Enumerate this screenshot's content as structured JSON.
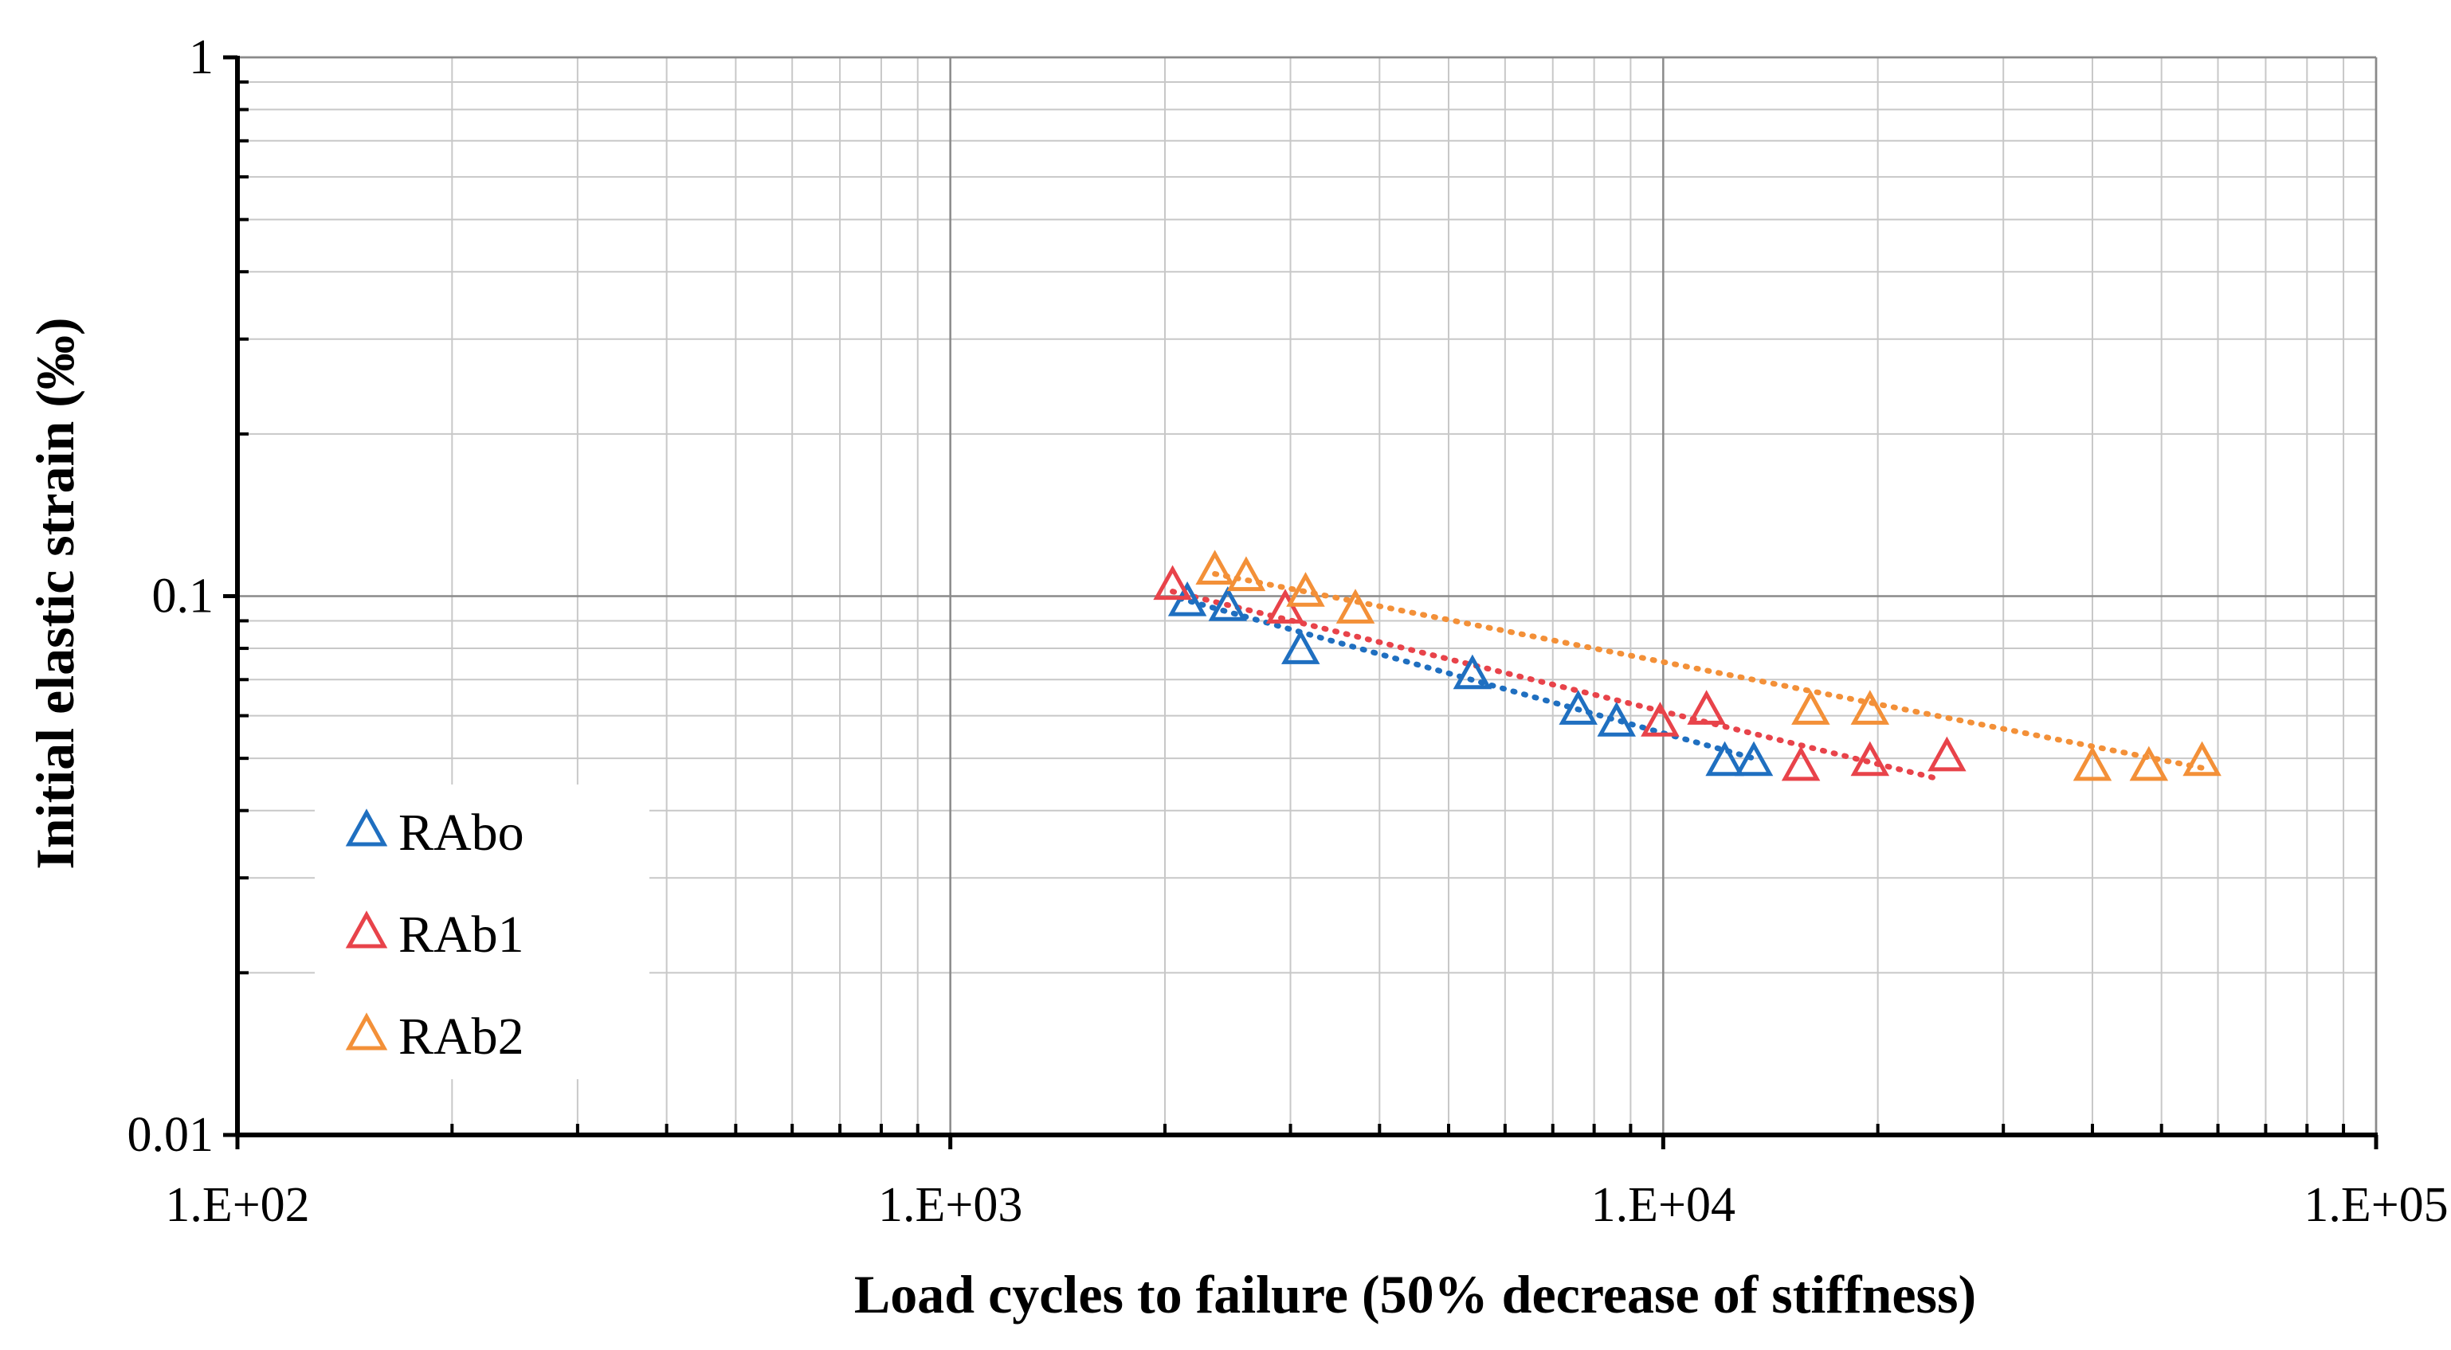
{
  "chart_data": {
    "type": "scatter",
    "xscale": "log",
    "yscale": "log",
    "xlim": [
      100,
      100000
    ],
    "ylim": [
      0.01,
      1
    ],
    "xticks": [
      100,
      1000,
      10000,
      100000
    ],
    "xtick_labels": [
      "1.E+02",
      "1.E+03",
      "1.E+04",
      "1.E+05"
    ],
    "yticks": [
      0.01,
      0.1,
      1
    ],
    "ytick_labels": [
      "0.01",
      "0.1",
      "1"
    ],
    "xlabel": "Load cycles to failure (50% decrease of stiffness)",
    "ylabel": "Initial elastic strain (‰)",
    "grid": true,
    "legend_position": "bottom-left",
    "marker": "hollow-triangle",
    "trendline": "dotted power fit",
    "series": [
      {
        "name": "RAbo",
        "color": "#1f6fc0",
        "points": [
          [
            2150,
            0.097
          ],
          [
            2450,
            0.095
          ],
          [
            3100,
            0.079
          ],
          [
            5400,
            0.071
          ],
          [
            7600,
            0.061
          ],
          [
            8600,
            0.058
          ],
          [
            12200,
            0.049
          ],
          [
            13400,
            0.049
          ]
        ],
        "trend": [
          [
            2100,
            0.099
          ],
          [
            13400,
            0.05
          ]
        ]
      },
      {
        "name": "RAb1",
        "color": "#e8434a",
        "points": [
          [
            2050,
            0.104
          ],
          [
            2950,
            0.094
          ],
          [
            9900,
            0.058
          ],
          [
            11500,
            0.061
          ],
          [
            15600,
            0.048
          ],
          [
            19500,
            0.049
          ],
          [
            25000,
            0.05
          ]
        ],
        "trend": [
          [
            2050,
            0.102
          ],
          [
            24000,
            0.046
          ]
        ]
      },
      {
        "name": "RAb2",
        "color": "#f39038",
        "points": [
          [
            2350,
            0.111
          ],
          [
            2600,
            0.108
          ],
          [
            3150,
            0.101
          ],
          [
            3700,
            0.094
          ],
          [
            16100,
            0.061
          ],
          [
            19500,
            0.061
          ],
          [
            40000,
            0.048
          ],
          [
            48000,
            0.048
          ],
          [
            57000,
            0.049
          ]
        ],
        "trend": [
          [
            2350,
            0.11
          ],
          [
            57000,
            0.048
          ]
        ]
      }
    ]
  }
}
